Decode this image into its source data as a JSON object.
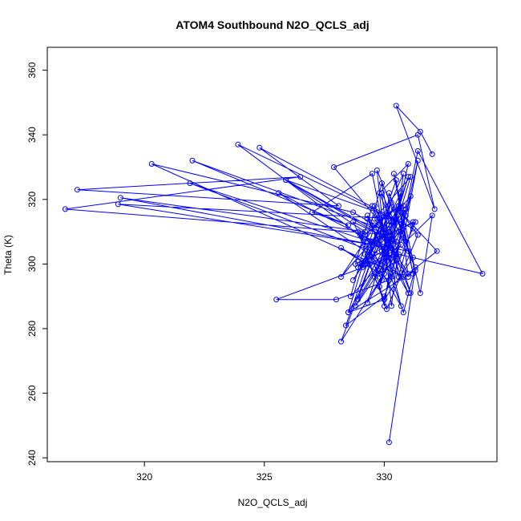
{
  "chart_data": {
    "type": "line",
    "title": "ATOM4 Southbound N2O_QCLS_adj",
    "xlabel": "N2O_QCLS_adj",
    "ylabel": "Theta (K)",
    "xlim": [
      315.95,
      334.7
    ],
    "ylim": [
      238.8,
      367.1
    ],
    "xticks": [
      320,
      325,
      330
    ],
    "yticks": [
      240,
      260,
      280,
      300,
      320,
      340,
      360
    ],
    "grid": false,
    "color": "#0000ff",
    "marker": "open-circle",
    "series": [
      {
        "name": "",
        "x": [
          330.2,
          331.3,
          330.8,
          329.9,
          330.6,
          331.2,
          330.4,
          331.5,
          332.0,
          330.9,
          329.7,
          330.3,
          330.8,
          329.6,
          331.0,
          332.2,
          330.7,
          331.4,
          330.1,
          328.9,
          330.5,
          329.8,
          331.0,
          329.3,
          330.7,
          328.7,
          329.9,
          330.2,
          331.3,
          328.5,
          329.6,
          330.4,
          329.2,
          330.0,
          331.1,
          328.2,
          329.8,
          330.7,
          329.0,
          330.3,
          328.8,
          329.5,
          331.0,
          329.3,
          330.1,
          328.6,
          329.9,
          330.6,
          331.2,
          329.4,
          330.0,
          330.8,
          329.2,
          328.7,
          330.2,
          331.1,
          329.6,
          330.4,
          329.1,
          330.7,
          329.8,
          330.9,
          328.9,
          330.3,
          329.5,
          331.3,
          330.0,
          328.4,
          329.7,
          330.5,
          331.0,
          329.3,
          330.1,
          328.8,
          330.6,
          329.9,
          330.3,
          331.4,
          330.8,
          329.6,
          330.4,
          331.2,
          330.0,
          328.5,
          330.9,
          329.0,
          330.2,
          331.1,
          329.7,
          330.5,
          328.2,
          329.4,
          330.6,
          329.2,
          330.0,
          331.0,
          329.8,
          330.3,
          328.9,
          330.7,
          331.4,
          334.1,
          330.6,
          325.5,
          328.0,
          330.2,
          328.2,
          329.3,
          330.2,
          322.0,
          328.5,
          327.0,
          329.5,
          330.2,
          321.9,
          329.8,
          325.6,
          330.8,
          320.3,
          328.7,
          330.3,
          316.7,
          326.5,
          317.2,
          328.1,
          324.8,
          331.2,
          323.9,
          329.5,
          318.9,
          330.5,
          325.9,
          331.0,
          319.0,
          329.2,
          325.9,
          330.5,
          327.9,
          331.4,
          332.1,
          330.5,
          331.5,
          332.0
        ],
        "y": [
          244.8,
          299.0,
          285.0,
          304.0,
          318.0,
          297.0,
          328.0,
          291.0,
          315.0,
          307.0,
          329.0,
          287.0,
          318.0,
          314.0,
          297.0,
          304.0,
          316.0,
          309.0,
          286.0,
          310.0,
          301.0,
          297.0,
          327.0,
          288.0,
          306.0,
          313.0,
          295.0,
          322.0,
          298.0,
          285.0,
          312.0,
          317.0,
          303.0,
          289.0,
          321.0,
          296.0,
          314.0,
          287.0,
          309.0,
          305.0,
          300.0,
          318.0,
          291.0,
          314.0,
          302.0,
          290.0,
          325.0,
          296.0,
          313.0,
          306.0,
          287.0,
          328.0,
          301.0,
          295.0,
          312.0,
          291.0,
          318.0,
          304.0,
          299.0,
          322.0,
          293.0,
          315.0,
          289.0,
          319.0,
          307.0,
          313.0,
          290.0,
          281.0,
          309.0,
          326.0,
          296.0,
          315.0,
          301.0,
          287.0,
          310.0,
          322.0,
          296.0,
          332.0,
          308.0,
          296.0,
          313.0,
          302.0,
          289.0,
          285.0,
          317.0,
          300.0,
          305.0,
          327.0,
          315.0,
          303.0,
          276.0,
          300.0,
          318.0,
          309.0,
          297.0,
          331.0,
          322.0,
          313.0,
          299.0,
          310.0,
          335.0,
          297.0,
          303.0,
          289.0,
          289.0,
          295.0,
          305.0,
          300.0,
          310.0,
          332.0,
          312.0,
          316.0,
          328.0,
          302.0,
          325.0,
          306.0,
          322.0,
          296.0,
          331.0,
          316.0,
          309.0,
          317.0,
          327.0,
          323.0,
          318.0,
          336.0,
          311.0,
          337.0,
          306.0,
          318.5,
          314.0,
          326.0,
          304.0,
          320.5,
          310.0,
          326.0,
          307.0,
          330.0,
          340.0,
          317.0,
          349.0,
          341.0,
          334.0
        ]
      }
    ]
  }
}
